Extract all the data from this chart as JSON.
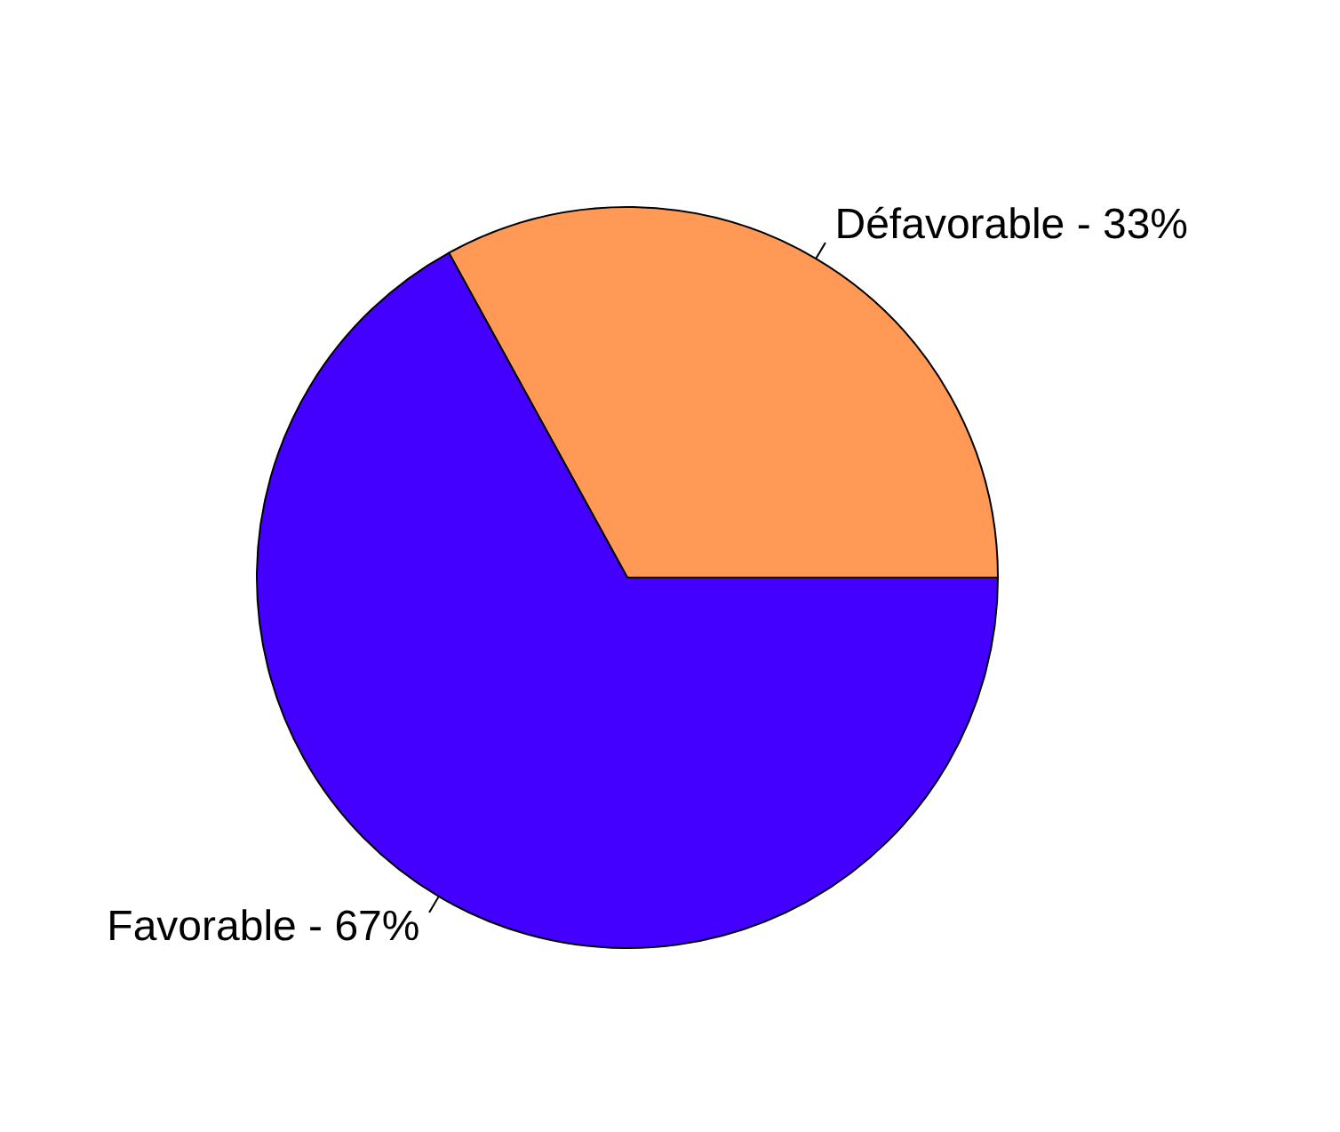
{
  "chart_data": {
    "type": "pie",
    "categories": [
      "Défavorable - 33%",
      "Favorable - 67%"
    ],
    "values": [
      33,
      67
    ],
    "colors": [
      "#ff9955",
      "#4400ff"
    ],
    "legend": false
  }
}
